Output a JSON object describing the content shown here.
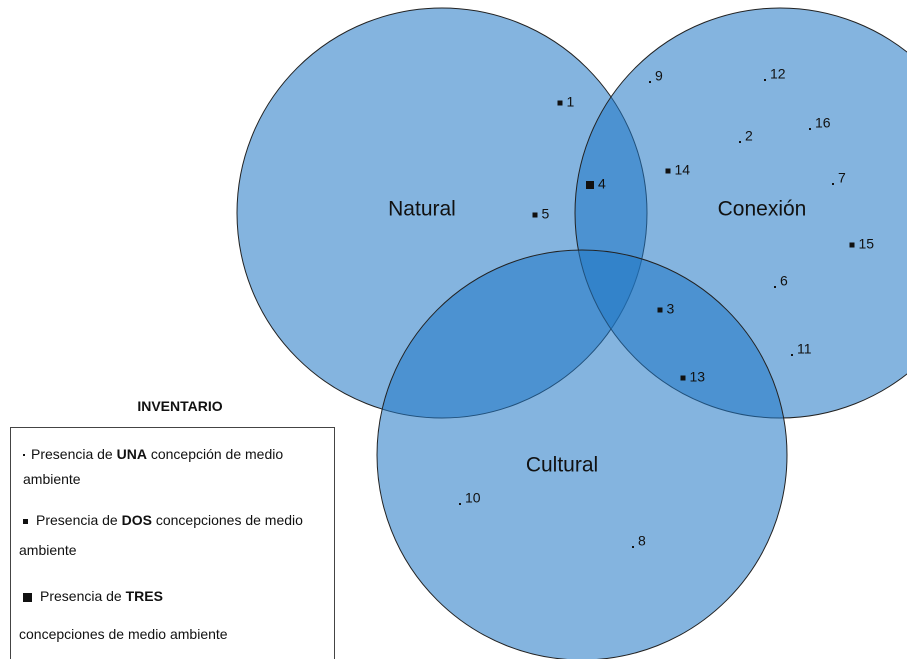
{
  "sets": [
    {
      "label": "Natural"
    },
    {
      "label": "Conexión"
    },
    {
      "label": "Cultural"
    }
  ],
  "items": [
    "1",
    "4",
    "5",
    "9",
    "12",
    "16",
    "2",
    "14",
    "7",
    "15",
    "6",
    "3",
    "11",
    "13",
    "10",
    "8"
  ],
  "legend": {
    "title": "INVENTARIO",
    "entries": [
      {
        "before": "Presencia de ",
        "bold": "UNA",
        "after": " concepción de medio ambiente"
      },
      {
        "before": "Presencia de ",
        "bold": "DOS",
        "after": " concepciones de medio ambiente"
      },
      {
        "before": "Presencia de ",
        "bold": "TRES",
        "after": "concepciones de medio ambiente"
      }
    ]
  }
}
